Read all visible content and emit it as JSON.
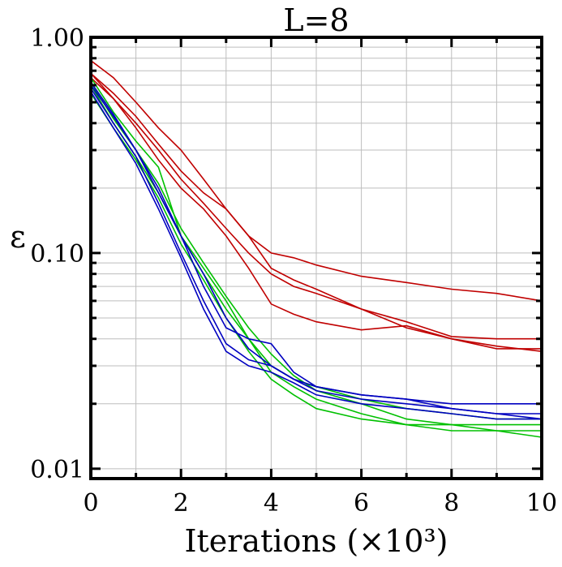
{
  "chart_data": {
    "type": "line",
    "title": "L=8",
    "xlabel": "Iterations (×10³)",
    "ylabel": "ε",
    "xlim": [
      0,
      10
    ],
    "ylim": [
      0.009,
      1.0
    ],
    "yscale": "log",
    "grid": true,
    "x_ticks": [
      "0",
      "2",
      "4",
      "6",
      "8",
      "10"
    ],
    "y_ticks": [
      "1.00",
      "0.10",
      "0.01"
    ],
    "colors": {
      "red": "#c00000",
      "green": "#00c000",
      "blue": "#0000c0"
    },
    "series": [
      {
        "color": "red",
        "x": [
          0,
          0.5,
          1,
          1.5,
          2,
          2.5,
          3,
          3.5,
          4,
          4.5,
          5,
          6,
          7,
          8,
          9,
          10
        ],
        "y": [
          0.78,
          0.65,
          0.5,
          0.38,
          0.3,
          0.22,
          0.16,
          0.12,
          0.1,
          0.095,
          0.088,
          0.078,
          0.073,
          0.068,
          0.065,
          0.06
        ]
      },
      {
        "color": "red",
        "x": [
          0,
          0.5,
          1,
          1.5,
          2,
          2.5,
          3,
          3.5,
          4,
          4.5,
          5,
          6,
          7,
          8,
          9,
          10
        ],
        "y": [
          0.68,
          0.55,
          0.43,
          0.32,
          0.24,
          0.19,
          0.16,
          0.12,
          0.085,
          0.075,
          0.068,
          0.055,
          0.048,
          0.041,
          0.04,
          0.04
        ]
      },
      {
        "color": "red",
        "x": [
          0,
          0.5,
          1,
          1.5,
          2,
          2.5,
          3,
          3.5,
          4,
          4.5,
          5,
          6,
          7,
          8,
          9,
          10
        ],
        "y": [
          0.65,
          0.52,
          0.4,
          0.3,
          0.22,
          0.17,
          0.13,
          0.1,
          0.08,
          0.07,
          0.065,
          0.055,
          0.045,
          0.04,
          0.037,
          0.035
        ]
      },
      {
        "color": "red",
        "x": [
          0,
          0.5,
          1,
          1.5,
          2,
          2.5,
          3,
          3.5,
          4,
          4.5,
          5,
          6,
          7,
          8,
          9,
          10
        ],
        "y": [
          0.68,
          0.52,
          0.38,
          0.27,
          0.2,
          0.16,
          0.12,
          0.085,
          0.058,
          0.052,
          0.048,
          0.044,
          0.046,
          0.04,
          0.036,
          0.036
        ]
      },
      {
        "color": "green",
        "x": [
          0,
          0.5,
          1,
          1.5,
          2,
          2.5,
          3,
          3.5,
          4,
          4.5,
          5,
          6,
          7,
          8,
          9,
          10
        ],
        "y": [
          0.65,
          0.45,
          0.33,
          0.25,
          0.12,
          0.085,
          0.06,
          0.04,
          0.03,
          0.026,
          0.024,
          0.021,
          0.019,
          0.018,
          0.017,
          0.017
        ]
      },
      {
        "color": "green",
        "x": [
          0,
          0.5,
          1,
          1.5,
          2,
          2.5,
          3,
          3.5,
          4,
          4.5,
          5,
          6,
          7,
          8,
          9,
          10
        ],
        "y": [
          0.62,
          0.42,
          0.3,
          0.21,
          0.13,
          0.09,
          0.063,
          0.045,
          0.034,
          0.027,
          0.023,
          0.02,
          0.017,
          0.016,
          0.016,
          0.016
        ]
      },
      {
        "color": "green",
        "x": [
          0,
          0.5,
          1,
          1.5,
          2,
          2.5,
          3,
          3.5,
          4,
          4.5,
          5,
          6,
          7,
          8,
          9,
          10
        ],
        "y": [
          0.6,
          0.4,
          0.28,
          0.19,
          0.12,
          0.08,
          0.055,
          0.04,
          0.028,
          0.024,
          0.021,
          0.018,
          0.016,
          0.016,
          0.015,
          0.015
        ]
      },
      {
        "color": "green",
        "x": [
          0,
          0.5,
          1,
          1.5,
          2,
          2.5,
          3,
          3.5,
          4,
          4.5,
          5,
          6,
          7,
          8,
          9,
          10
        ],
        "y": [
          0.55,
          0.38,
          0.27,
          0.18,
          0.11,
          0.075,
          0.05,
          0.035,
          0.026,
          0.022,
          0.019,
          0.017,
          0.016,
          0.015,
          0.015,
          0.014
        ]
      },
      {
        "color": "blue",
        "x": [
          0,
          0.5,
          1,
          1.5,
          2,
          2.5,
          3,
          3.5,
          4,
          4.5,
          5,
          6,
          7,
          8,
          9,
          10
        ],
        "y": [
          0.62,
          0.44,
          0.3,
          0.2,
          0.12,
          0.08,
          0.05,
          0.036,
          0.03,
          0.026,
          0.024,
          0.022,
          0.021,
          0.02,
          0.02,
          0.02
        ]
      },
      {
        "color": "blue",
        "x": [
          0,
          0.5,
          1,
          1.5,
          2,
          2.5,
          3,
          3.5,
          4,
          4.5,
          5,
          6,
          7,
          8,
          9,
          10
        ],
        "y": [
          0.6,
          0.43,
          0.3,
          0.19,
          0.12,
          0.07,
          0.045,
          0.04,
          0.038,
          0.028,
          0.024,
          0.022,
          0.021,
          0.019,
          0.018,
          0.018
        ]
      },
      {
        "color": "blue",
        "x": [
          0,
          0.5,
          1,
          1.5,
          2,
          2.5,
          3,
          3.5,
          4,
          4.5,
          5,
          6,
          7,
          8,
          9,
          10
        ],
        "y": [
          0.58,
          0.4,
          0.28,
          0.17,
          0.1,
          0.06,
          0.038,
          0.032,
          0.03,
          0.026,
          0.023,
          0.021,
          0.02,
          0.019,
          0.018,
          0.017
        ]
      },
      {
        "color": "blue",
        "x": [
          0,
          0.5,
          1,
          1.5,
          2,
          2.5,
          3,
          3.5,
          4,
          4.5,
          5,
          6,
          7,
          8,
          9,
          10
        ],
        "y": [
          0.56,
          0.38,
          0.26,
          0.16,
          0.095,
          0.055,
          0.035,
          0.03,
          0.028,
          0.025,
          0.022,
          0.02,
          0.019,
          0.018,
          0.017,
          0.017
        ]
      }
    ]
  }
}
